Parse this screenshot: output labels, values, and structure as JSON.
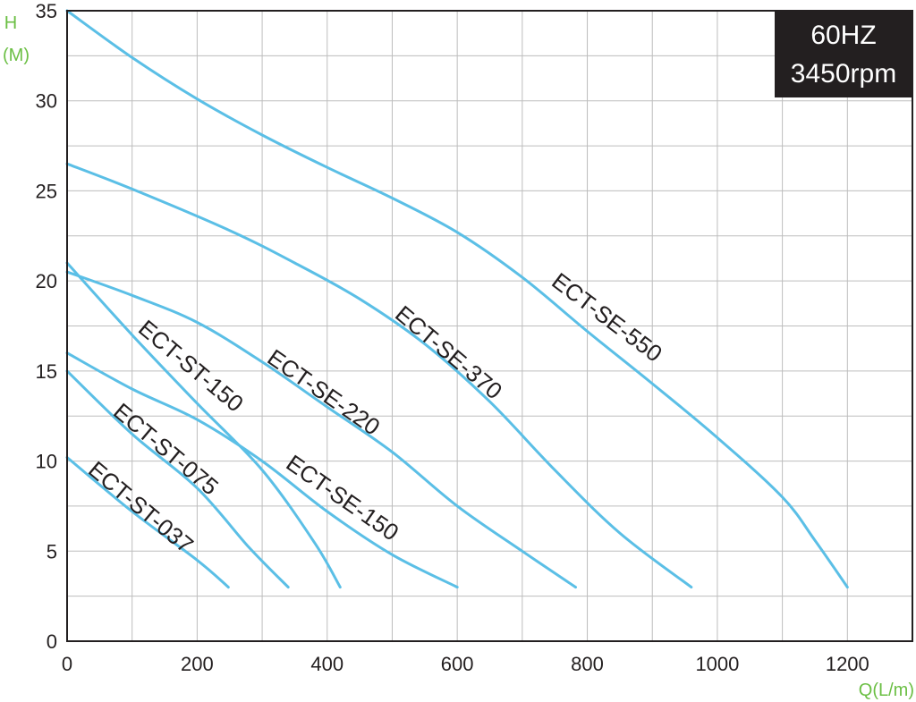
{
  "badge": {
    "line1": "60HZ",
    "line2": "3450rpm"
  },
  "colors": {
    "curve": "#5bbfe6",
    "axis_title": "#6bbf44",
    "badge_bg": "#231f20",
    "grid": "#bdbdbd"
  },
  "chart_data": {
    "type": "line",
    "xlabel": "Q(L/m)",
    "ylabel_line1": "H",
    "ylabel_line2": "(M)",
    "xlim": [
      0,
      1300
    ],
    "ylim": [
      0,
      35
    ],
    "x_ticks": [
      0,
      200,
      400,
      600,
      800,
      1000,
      1200
    ],
    "y_ticks": [
      0,
      5,
      10,
      15,
      20,
      25,
      30,
      35
    ],
    "grid": true,
    "series": [
      {
        "name": "ECT-ST-037",
        "points": [
          [
            0,
            10.2
          ],
          [
            100,
            7.2
          ],
          [
            200,
            4.5
          ],
          [
            248,
            3
          ]
        ]
      },
      {
        "name": "ECT-ST-075",
        "points": [
          [
            0,
            15
          ],
          [
            100,
            11.5
          ],
          [
            200,
            8.5
          ],
          [
            280,
            5.2
          ],
          [
            340,
            3
          ]
        ]
      },
      {
        "name": "ECT-ST-150",
        "points": [
          [
            0,
            21
          ],
          [
            100,
            17
          ],
          [
            200,
            13.2
          ],
          [
            300,
            9.5
          ],
          [
            380,
            5.5
          ],
          [
            420,
            3
          ]
        ]
      },
      {
        "name": "ECT-SE-150",
        "points": [
          [
            0,
            16
          ],
          [
            100,
            14
          ],
          [
            200,
            12.3
          ],
          [
            300,
            10
          ],
          [
            400,
            7.2
          ],
          [
            500,
            4.8
          ],
          [
            600,
            3
          ]
        ]
      },
      {
        "name": "ECT-SE-220",
        "points": [
          [
            0,
            20.5
          ],
          [
            100,
            19.2
          ],
          [
            200,
            17.7
          ],
          [
            300,
            15.5
          ],
          [
            400,
            13
          ],
          [
            500,
            10.5
          ],
          [
            600,
            7.5
          ],
          [
            700,
            5
          ],
          [
            782,
            3
          ]
        ]
      },
      {
        "name": "ECT-SE-370",
        "points": [
          [
            0,
            26.5
          ],
          [
            100,
            25.1
          ],
          [
            250,
            22.8
          ],
          [
            350,
            21
          ],
          [
            450,
            19
          ],
          [
            550,
            16.5
          ],
          [
            650,
            13.3
          ],
          [
            750,
            9.5
          ],
          [
            850,
            6
          ],
          [
            960,
            3
          ]
        ]
      },
      {
        "name": "ECT-SE-550",
        "points": [
          [
            0,
            35
          ],
          [
            100,
            32.4
          ],
          [
            200,
            30.1
          ],
          [
            300,
            28.1
          ],
          [
            400,
            26.3
          ],
          [
            500,
            24.6
          ],
          [
            600,
            22.7
          ],
          [
            700,
            20.2
          ],
          [
            800,
            17.2
          ],
          [
            900,
            14.3
          ],
          [
            1000,
            11.3
          ],
          [
            1100,
            8
          ],
          [
            1150,
            5.6
          ],
          [
            1200,
            3
          ]
        ]
      }
    ]
  }
}
